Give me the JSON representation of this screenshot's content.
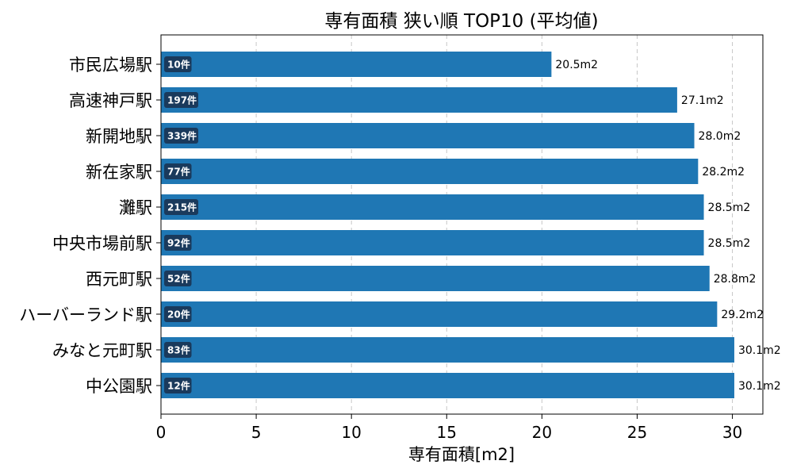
{
  "chart_data": {
    "type": "bar",
    "orientation": "horizontal",
    "title": "専有面積 狭い順 TOP10 (平均値)",
    "xlabel": "専有面積[m2]",
    "ylabel": "",
    "xlim": [
      0,
      31.6
    ],
    "xticks": [
      0,
      5,
      10,
      15,
      20,
      25,
      30
    ],
    "grid": "x-dashed",
    "bar_color": "#1f77b4",
    "badge_color": "#1a3a5c",
    "value_suffix": "m2",
    "categories": [
      "市民広場駅",
      "高速神戸駅",
      "新開地駅",
      "新在家駅",
      "灘駅",
      "中央市場前駅",
      "西元町駅",
      "ハーバーランド駅",
      "みなと元町駅",
      "中公園駅"
    ],
    "values": [
      20.5,
      27.1,
      28.0,
      28.2,
      28.5,
      28.5,
      28.8,
      29.2,
      30.1,
      30.1
    ],
    "value_labels": [
      "20.5m2",
      "27.1m2",
      "28.0m2",
      "28.2m2",
      "28.5m2",
      "28.5m2",
      "28.8m2",
      "29.2m2",
      "30.1m2",
      "30.1m2"
    ],
    "counts": [
      "10件",
      "197件",
      "339件",
      "77件",
      "215件",
      "92件",
      "52件",
      "20件",
      "83件",
      "12件"
    ]
  }
}
